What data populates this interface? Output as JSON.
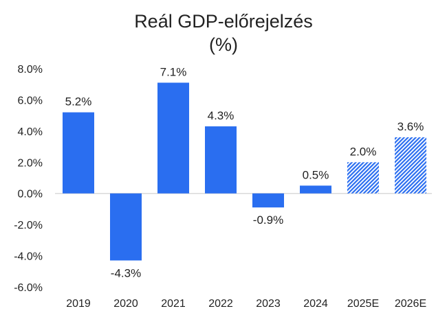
{
  "chart_data": {
    "type": "bar",
    "title": "Reál GDP-előrejelzés",
    "subtitle": "(%)",
    "categories": [
      "2019",
      "2020",
      "2021",
      "2022",
      "2023",
      "2024",
      "2025E",
      "2026E"
    ],
    "values": [
      5.2,
      -4.3,
      7.1,
      4.3,
      -0.9,
      0.5,
      2.0,
      3.6
    ],
    "data_labels": [
      "5.2%",
      "-4.3%",
      "7.1%",
      "4.3%",
      "-0.9%",
      "0.5%",
      "2.0%",
      "3.6%"
    ],
    "estimate": [
      false,
      false,
      false,
      false,
      false,
      false,
      true,
      true
    ],
    "ylim": [
      -6,
      8
    ],
    "yticks": [
      8,
      6,
      4,
      2,
      0,
      -2,
      -4,
      -6
    ],
    "ytick_labels": [
      "8.0%",
      "6.0%",
      "4.0%",
      "2.0%",
      "0.0%",
      "-2.0%",
      "-4.0%",
      "-6.0%"
    ],
    "grid": false,
    "colors": {
      "bar": "#2a6ef0",
      "zero_line": "#d9d9d9"
    }
  }
}
